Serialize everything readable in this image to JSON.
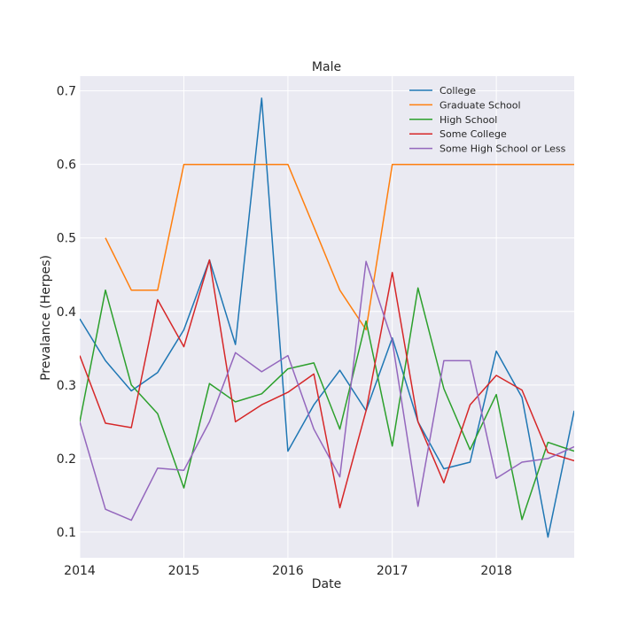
{
  "chart_data": {
    "type": "line",
    "title": "Male",
    "xlabel": "Date",
    "ylabel": "Prevalance (Herpes)",
    "xlim": [
      "2014-01-01",
      "2018-10-01"
    ],
    "ylim": [
      0.065,
      0.72
    ],
    "x_ticks": [
      {
        "date": "2014-01-01",
        "label": "2014"
      },
      {
        "date": "2015-01-01",
        "label": "2015"
      },
      {
        "date": "2016-01-01",
        "label": "2016"
      },
      {
        "date": "2017-01-01",
        "label": "2017"
      },
      {
        "date": "2018-01-01",
        "label": "2018"
      }
    ],
    "y_ticks": [
      0.1,
      0.2,
      0.3,
      0.4,
      0.5,
      0.6,
      0.7
    ],
    "grid": true,
    "legend_position": "top-right",
    "background": "#eaeaf2",
    "x": [
      "2014-01-01",
      "2014-04-01",
      "2014-07-01",
      "2014-10-01",
      "2015-01-01",
      "2015-04-01",
      "2015-07-01",
      "2015-10-01",
      "2016-01-01",
      "2016-04-01",
      "2016-07-01",
      "2016-10-01",
      "2017-01-01",
      "2017-04-01",
      "2017-07-01",
      "2017-10-01",
      "2018-01-01",
      "2018-04-01",
      "2018-07-01",
      "2018-10-01"
    ],
    "series": [
      {
        "name": "College",
        "color": "#1f77b4",
        "values": [
          0.39,
          0.333,
          0.292,
          0.317,
          0.375,
          0.47,
          0.355,
          0.69,
          0.21,
          0.273,
          0.32,
          0.265,
          0.364,
          0.25,
          0.186,
          0.195,
          0.346,
          0.283,
          0.093,
          0.265
        ]
      },
      {
        "name": "Graduate School",
        "color": "#ff7f0e",
        "values": [
          null,
          0.5,
          0.429,
          0.429,
          0.6,
          0.6,
          0.6,
          0.6,
          0.6,
          0.515,
          0.429,
          0.375,
          0.6,
          0.6,
          0.6,
          0.6,
          0.6,
          0.6,
          0.6,
          0.6
        ]
      },
      {
        "name": "High School",
        "color": "#2ca02c",
        "values": [
          0.25,
          0.429,
          0.3,
          0.261,
          0.16,
          0.302,
          0.277,
          0.288,
          0.322,
          0.33,
          0.24,
          0.387,
          0.217,
          0.432,
          0.295,
          0.212,
          0.287,
          0.117,
          0.222,
          0.21
        ]
      },
      {
        "name": "Some College",
        "color": "#d62728",
        "values": [
          0.34,
          0.248,
          0.242,
          0.416,
          0.352,
          0.47,
          0.25,
          0.273,
          0.29,
          0.315,
          0.133,
          0.265,
          0.453,
          0.25,
          0.167,
          0.273,
          0.313,
          0.293,
          0.208,
          0.197
        ]
      },
      {
        "name": "Some High School or Less",
        "color": "#9467bd",
        "values": [
          0.25,
          0.131,
          0.116,
          0.187,
          0.184,
          0.25,
          0.344,
          0.318,
          0.34,
          0.24,
          0.175,
          0.468,
          0.36,
          0.135,
          0.333,
          0.333,
          0.173,
          0.195,
          0.2,
          0.216
        ]
      }
    ]
  }
}
